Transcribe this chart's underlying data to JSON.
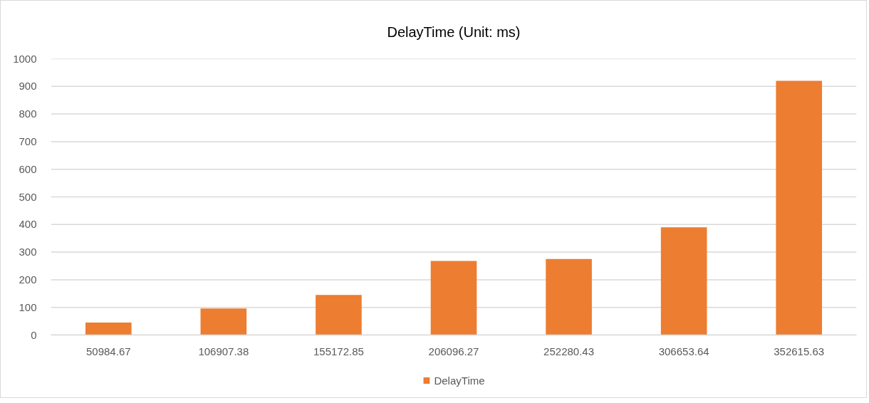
{
  "chart_data": {
    "type": "bar",
    "title": "DelayTime (Unit: ms)",
    "categories": [
      "50984.67",
      "106907.38",
      "155172.85",
      "206096.27",
      "252280.43",
      "306653.64",
      "352615.63"
    ],
    "series": [
      {
        "name": "DelayTime",
        "color": "#ed7d31",
        "values": [
          45,
          96,
          145,
          268,
          275,
          390,
          920
        ]
      }
    ],
    "ylim": [
      0,
      1000
    ],
    "yticks": [
      0,
      100,
      200,
      300,
      400,
      500,
      600,
      700,
      800,
      900,
      1000
    ],
    "grid": "y",
    "legend": "bottom"
  }
}
